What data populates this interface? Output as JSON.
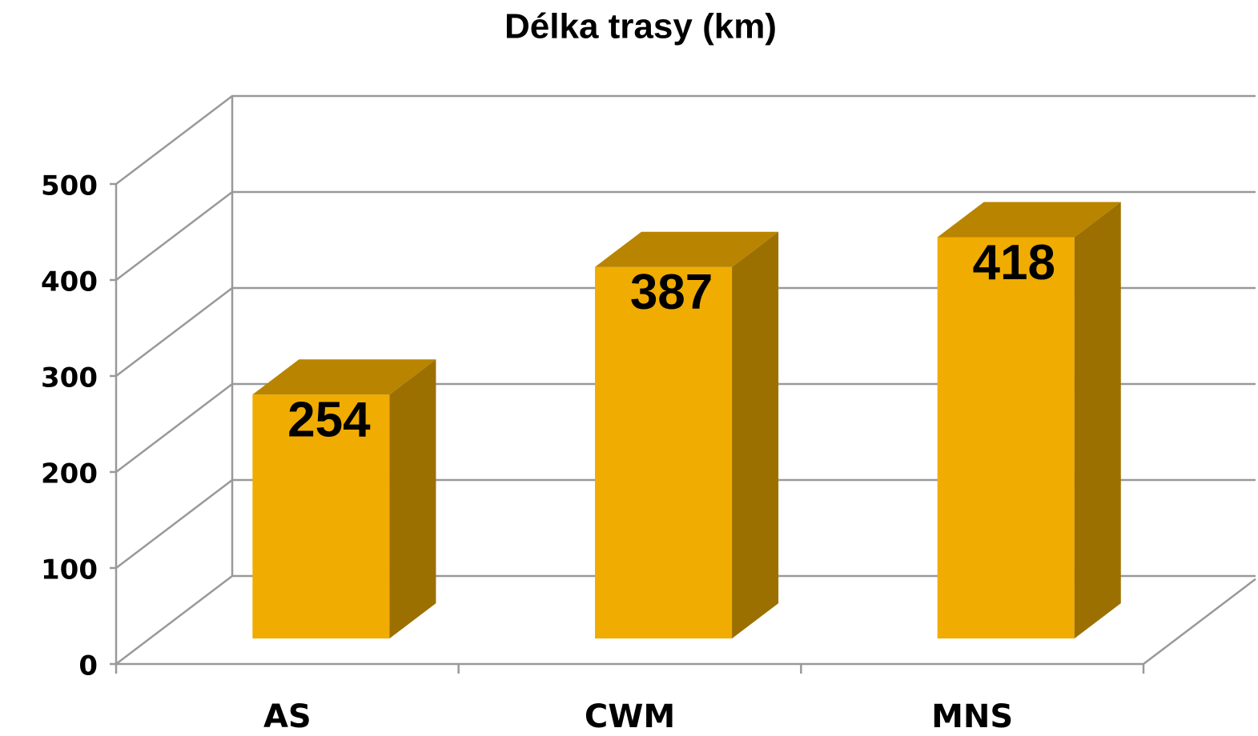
{
  "chart_data": {
    "type": "bar3d",
    "title": "Délka trasy (km)",
    "categories": [
      "AS",
      "CWM",
      "MNS"
    ],
    "values": [
      254,
      387,
      418
    ],
    "color": "#f0ac00",
    "ylim": [
      0,
      500
    ],
    "yticks": [
      0,
      100,
      200,
      300,
      400,
      500
    ],
    "grid": true
  }
}
